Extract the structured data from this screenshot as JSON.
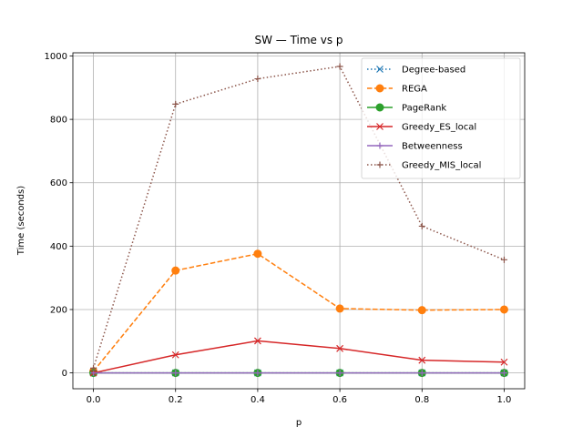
{
  "chart_data": {
    "type": "line",
    "title": "SW — Time vs p",
    "xlabel": "p",
    "ylabel": "Time (seconds)",
    "xlim": [
      -0.05,
      1.05
    ],
    "ylim": [
      -50,
      1010
    ],
    "x_ticks": [
      0.0,
      0.2,
      0.4,
      0.6,
      0.8,
      1.0
    ],
    "x_tick_labels": [
      "0.0",
      "0.2",
      "0.4",
      "0.6",
      "0.8",
      "1.0"
    ],
    "y_ticks": [
      0,
      200,
      400,
      600,
      800,
      1000
    ],
    "y_tick_labels": [
      "0",
      "200",
      "400",
      "600",
      "800",
      "1000"
    ],
    "grid": true,
    "legend_position": "top-right",
    "x": [
      0.0,
      0.2,
      0.4,
      0.6,
      0.8,
      1.0
    ],
    "series": [
      {
        "name": "Degree-based",
        "values": [
          0,
          0,
          0,
          0,
          0,
          0
        ],
        "color": "#1f77b4",
        "style": "dotted",
        "marker": "x"
      },
      {
        "name": "REGA",
        "values": [
          5,
          323,
          376,
          203,
          198,
          200
        ],
        "color": "#ff7f0e",
        "style": "dashed",
        "marker": "circle"
      },
      {
        "name": "PageRank",
        "values": [
          0,
          0,
          0,
          0,
          0,
          0
        ],
        "color": "#2ca02c",
        "style": "solid",
        "marker": "circle"
      },
      {
        "name": "Greedy_ES_local",
        "values": [
          0,
          57,
          101,
          77,
          40,
          34
        ],
        "color": "#d62728",
        "style": "solid",
        "marker": "x"
      },
      {
        "name": "Betweenness",
        "values": [
          0,
          0,
          0,
          0,
          0,
          0
        ],
        "color": "#9467bd",
        "style": "solid",
        "marker": "plus"
      },
      {
        "name": "Greedy_MIS_local",
        "values": [
          15,
          848,
          928,
          967,
          463,
          357
        ],
        "color": "#8c564b",
        "style": "dotted",
        "marker": "plus"
      }
    ]
  }
}
